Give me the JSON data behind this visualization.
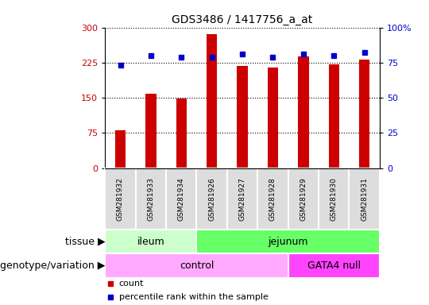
{
  "title": "GDS3486 / 1417756_a_at",
  "samples": [
    "GSM281932",
    "GSM281933",
    "GSM281934",
    "GSM281926",
    "GSM281927",
    "GSM281928",
    "GSM281929",
    "GSM281930",
    "GSM281931"
  ],
  "counts": [
    80,
    158,
    148,
    285,
    218,
    215,
    238,
    222,
    232
  ],
  "percentile_ranks": [
    73,
    80,
    79,
    79,
    81,
    79,
    81,
    80,
    82
  ],
  "bar_color": "#cc0000",
  "dot_color": "#0000cc",
  "ylim_left": [
    0,
    300
  ],
  "ylim_right": [
    0,
    100
  ],
  "yticks_left": [
    0,
    75,
    150,
    225,
    300
  ],
  "yticks_right": [
    0,
    25,
    50,
    75,
    100
  ],
  "tissue_groups": [
    {
      "label": "ileum",
      "start": 0,
      "end": 3,
      "color": "#ccffcc"
    },
    {
      "label": "jejunum",
      "start": 3,
      "end": 9,
      "color": "#66ff66"
    }
  ],
  "genotype_groups": [
    {
      "label": "control",
      "start": 0,
      "end": 6,
      "color": "#ffaaff"
    },
    {
      "label": "GATA4 null",
      "start": 6,
      "end": 9,
      "color": "#ff44ff"
    }
  ],
  "legend_count_label": "count",
  "legend_pct_label": "percentile rank within the sample",
  "tissue_label": "tissue",
  "genotype_label": "genotype/variation",
  "bg_color": "#ffffff",
  "tick_label_color_left": "#cc0000",
  "tick_label_color_right": "#0000cc",
  "xticklabel_bg": "#dddddd"
}
